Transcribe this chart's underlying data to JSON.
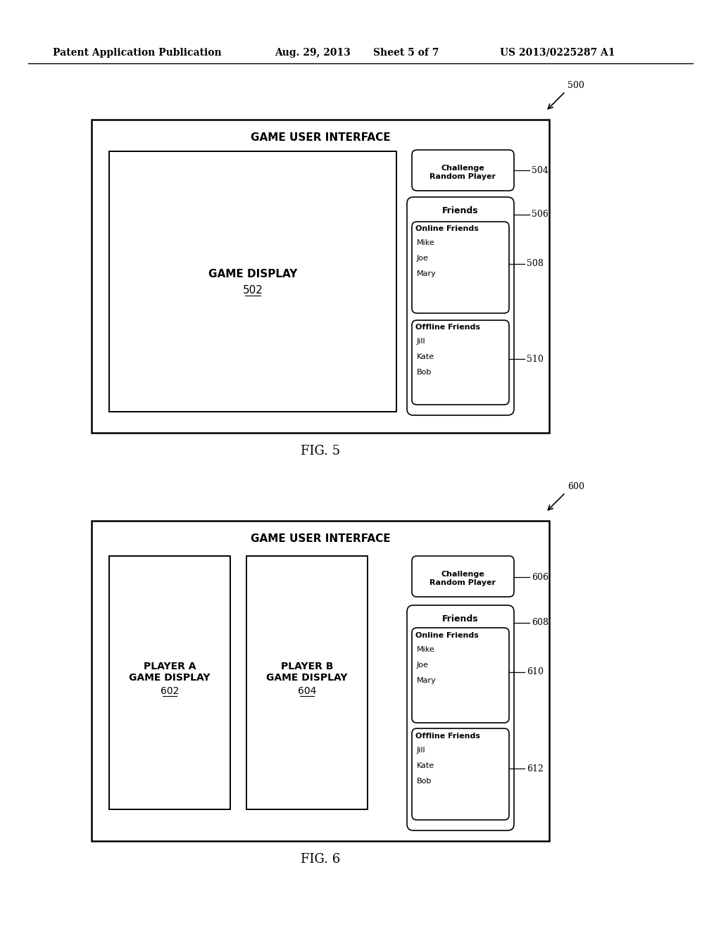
{
  "bg_color": "#ffffff",
  "header_text": "Patent Application Publication",
  "header_date": "Aug. 29, 2013",
  "header_sheet": "Sheet 5 of 7",
  "header_patent": "US 2013/0225287 A1",
  "fig5_label": "FIG. 5",
  "fig6_label": "FIG. 6",
  "fig5": {
    "ref": "500",
    "title": "GAME USER INTERFACE",
    "game_display_text": "GAME DISPLAY",
    "game_display_ref": "502",
    "challenge_text": "Challenge\nRandom Player",
    "challenge_ref": "504",
    "friends_label": "Friends",
    "friends_ref": "506",
    "online_label": "Online Friends",
    "online_names": [
      "Mike",
      "Joe",
      "Mary"
    ],
    "online_ref": "508",
    "offline_label": "Offline Friends",
    "offline_names": [
      "Jill",
      "Kate",
      "Bob"
    ],
    "offline_ref": "510"
  },
  "fig6": {
    "ref": "600",
    "title": "GAME USER INTERFACE",
    "playerA_text": "PLAYER A\nGAME DISPLAY",
    "playerA_ref": "602",
    "playerB_text": "PLAYER B\nGAME DISPLAY",
    "playerB_ref": "604",
    "challenge_text": "Challenge\nRandom Player",
    "challenge_ref": "606",
    "friends_label": "Friends",
    "friends_ref": "608",
    "online_label": "Online Friends",
    "online_names": [
      "Mike",
      "Joe",
      "Mary"
    ],
    "online_ref": "610",
    "offline_label": "Offline Friends",
    "offline_names": [
      "Jill",
      "Kate",
      "Bob"
    ],
    "offline_ref": "612"
  }
}
